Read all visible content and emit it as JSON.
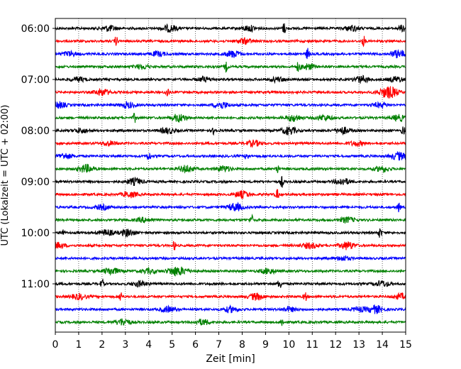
{
  "chart_data": {
    "type": "line",
    "title": "",
    "xlabel": "Zeit  [min]",
    "ylabel": "UTC (Lokalzeit = UTC + 02:00)",
    "xlim": [
      0,
      15
    ],
    "x_ticks": [
      "0",
      "1",
      "2",
      "3",
      "4",
      "5",
      "6",
      "7",
      "8",
      "9",
      "10",
      "11",
      "12",
      "13",
      "14",
      "15"
    ],
    "y_ticks": [
      {
        "label": "06:00",
        "trace": 0
      },
      {
        "label": "07:00",
        "trace": 4
      },
      {
        "label": "08:00",
        "trace": 8
      },
      {
        "label": "09:00",
        "trace": 12
      },
      {
        "label": "10:00",
        "trace": 16
      },
      {
        "label": "11:00",
        "trace": 20
      }
    ],
    "grid": "vertical dotted lines at each minute",
    "trace_interval_minutes": 15,
    "colors": [
      "#000000",
      "#ff0000",
      "#0000ff",
      "#008000"
    ],
    "series": [
      {
        "start": "06:00",
        "color": "#000000",
        "events": [
          [
            2.3,
            0.5
          ],
          [
            4.9,
            0.6
          ],
          [
            8.3,
            0.5
          ],
          [
            9.8,
            1.0
          ],
          [
            12.7,
            0.5
          ],
          [
            15.0,
            0.7
          ]
        ]
      },
      {
        "start": "06:15",
        "color": "#ff0000",
        "events": [
          [
            2.6,
            0.8
          ],
          [
            8.1,
            0.5
          ],
          [
            13.2,
            0.9
          ]
        ]
      },
      {
        "start": "06:30",
        "color": "#0000ff",
        "events": [
          [
            0.6,
            0.4
          ],
          [
            4.4,
            0.4
          ],
          [
            7.6,
            0.6
          ],
          [
            10.8,
            1.0
          ],
          [
            14.7,
            0.7
          ]
        ]
      },
      {
        "start": "06:45",
        "color": "#008000",
        "events": [
          [
            3.7,
            0.4
          ],
          [
            7.3,
            0.9
          ],
          [
            10.4,
            0.8
          ],
          [
            10.8,
            0.5
          ]
        ]
      },
      {
        "start": "07:00",
        "color": "#000000",
        "events": [
          [
            1.0,
            0.4
          ],
          [
            6.4,
            0.4
          ],
          [
            9.5,
            0.4
          ],
          [
            13.1,
            0.6
          ],
          [
            14.6,
            0.5
          ]
        ]
      },
      {
        "start": "07:15",
        "color": "#ff0000",
        "events": [
          [
            2.0,
            0.6
          ],
          [
            4.8,
            0.9
          ],
          [
            14.1,
            0.6
          ],
          [
            14.4,
            0.7
          ]
        ]
      },
      {
        "start": "07:30",
        "color": "#0000ff",
        "events": [
          [
            0.1,
            0.6
          ],
          [
            3.1,
            0.5
          ],
          [
            7.1,
            0.6
          ],
          [
            13.9,
            0.4
          ]
        ]
      },
      {
        "start": "07:45",
        "color": "#008000",
        "events": [
          [
            3.4,
            0.8
          ],
          [
            5.3,
            0.7
          ],
          [
            10.2,
            0.6
          ],
          [
            11.5,
            0.5
          ],
          [
            14.7,
            0.5
          ]
        ]
      },
      {
        "start": "08:00",
        "color": "#000000",
        "events": [
          [
            1.1,
            0.4
          ],
          [
            4.8,
            0.5
          ],
          [
            6.8,
            0.8
          ],
          [
            10.0,
            0.7
          ],
          [
            12.3,
            0.6
          ],
          [
            14.9,
            0.9
          ]
        ]
      },
      {
        "start": "08:15",
        "color": "#ff0000",
        "events": [
          [
            2.3,
            0.4
          ],
          [
            8.5,
            0.5
          ],
          [
            12.9,
            0.4
          ]
        ]
      },
      {
        "start": "08:30",
        "color": "#0000ff",
        "events": [
          [
            0.4,
            0.5
          ],
          [
            4.0,
            0.9
          ],
          [
            8.2,
            0.8
          ],
          [
            14.7,
            0.7
          ]
        ]
      },
      {
        "start": "08:45",
        "color": "#008000",
        "events": [
          [
            1.3,
            0.7
          ],
          [
            5.6,
            0.6
          ],
          [
            7.2,
            0.5
          ],
          [
            9.5,
            0.8
          ],
          [
            14.0,
            0.5
          ]
        ]
      },
      {
        "start": "09:00",
        "color": "#000000",
        "events": [
          [
            3.4,
            0.6
          ],
          [
            9.7,
            1.0
          ],
          [
            12.3,
            0.6
          ]
        ]
      },
      {
        "start": "09:15",
        "color": "#ff0000",
        "events": [
          [
            3.2,
            0.5
          ],
          [
            8.0,
            0.6
          ],
          [
            9.5,
            0.9
          ]
        ]
      },
      {
        "start": "09:30",
        "color": "#0000ff",
        "events": [
          [
            2.0,
            0.4
          ],
          [
            7.7,
            0.7
          ],
          [
            14.7,
            0.8
          ]
        ]
      },
      {
        "start": "09:45",
        "color": "#008000",
        "events": [
          [
            3.8,
            0.4
          ],
          [
            8.4,
            0.9
          ],
          [
            12.5,
            0.5
          ]
        ]
      },
      {
        "start": "10:00",
        "color": "#000000",
        "events": [
          [
            0.3,
            0.8
          ],
          [
            2.2,
            0.5
          ],
          [
            3.1,
            0.6
          ],
          [
            13.9,
            0.9
          ]
        ]
      },
      {
        "start": "10:15",
        "color": "#ff0000",
        "events": [
          [
            0.1,
            0.5
          ],
          [
            5.1,
            0.8
          ],
          [
            10.9,
            0.5
          ],
          [
            12.5,
            0.7
          ]
        ]
      },
      {
        "start": "10:30",
        "color": "#0000ff",
        "events": [
          [
            12.3,
            0.4
          ]
        ]
      },
      {
        "start": "10:45",
        "color": "#008000",
        "events": [
          [
            2.4,
            0.6
          ],
          [
            4.0,
            0.4
          ],
          [
            5.1,
            0.7
          ],
          [
            5.5,
            0.4
          ],
          [
            9.1,
            0.5
          ]
        ]
      },
      {
        "start": "11:00",
        "color": "#000000",
        "events": [
          [
            2.0,
            0.8
          ],
          [
            3.6,
            0.5
          ],
          [
            9.6,
            1.0
          ],
          [
            14.0,
            0.5
          ]
        ]
      },
      {
        "start": "11:15",
        "color": "#ff0000",
        "events": [
          [
            1.0,
            0.5
          ],
          [
            2.8,
            0.9
          ],
          [
            8.6,
            0.6
          ],
          [
            10.7,
            0.8
          ],
          [
            14.8,
            0.5
          ]
        ]
      },
      {
        "start": "11:30",
        "color": "#0000ff",
        "events": [
          [
            4.8,
            0.5
          ],
          [
            7.5,
            0.5
          ],
          [
            10.0,
            0.4
          ],
          [
            13.0,
            0.4
          ],
          [
            13.7,
            0.7
          ]
        ]
      },
      {
        "start": "11:45",
        "color": "#008000",
        "events": [
          [
            2.9,
            0.6
          ],
          [
            6.3,
            0.5
          ],
          [
            9.7,
            0.8
          ]
        ]
      }
    ]
  }
}
